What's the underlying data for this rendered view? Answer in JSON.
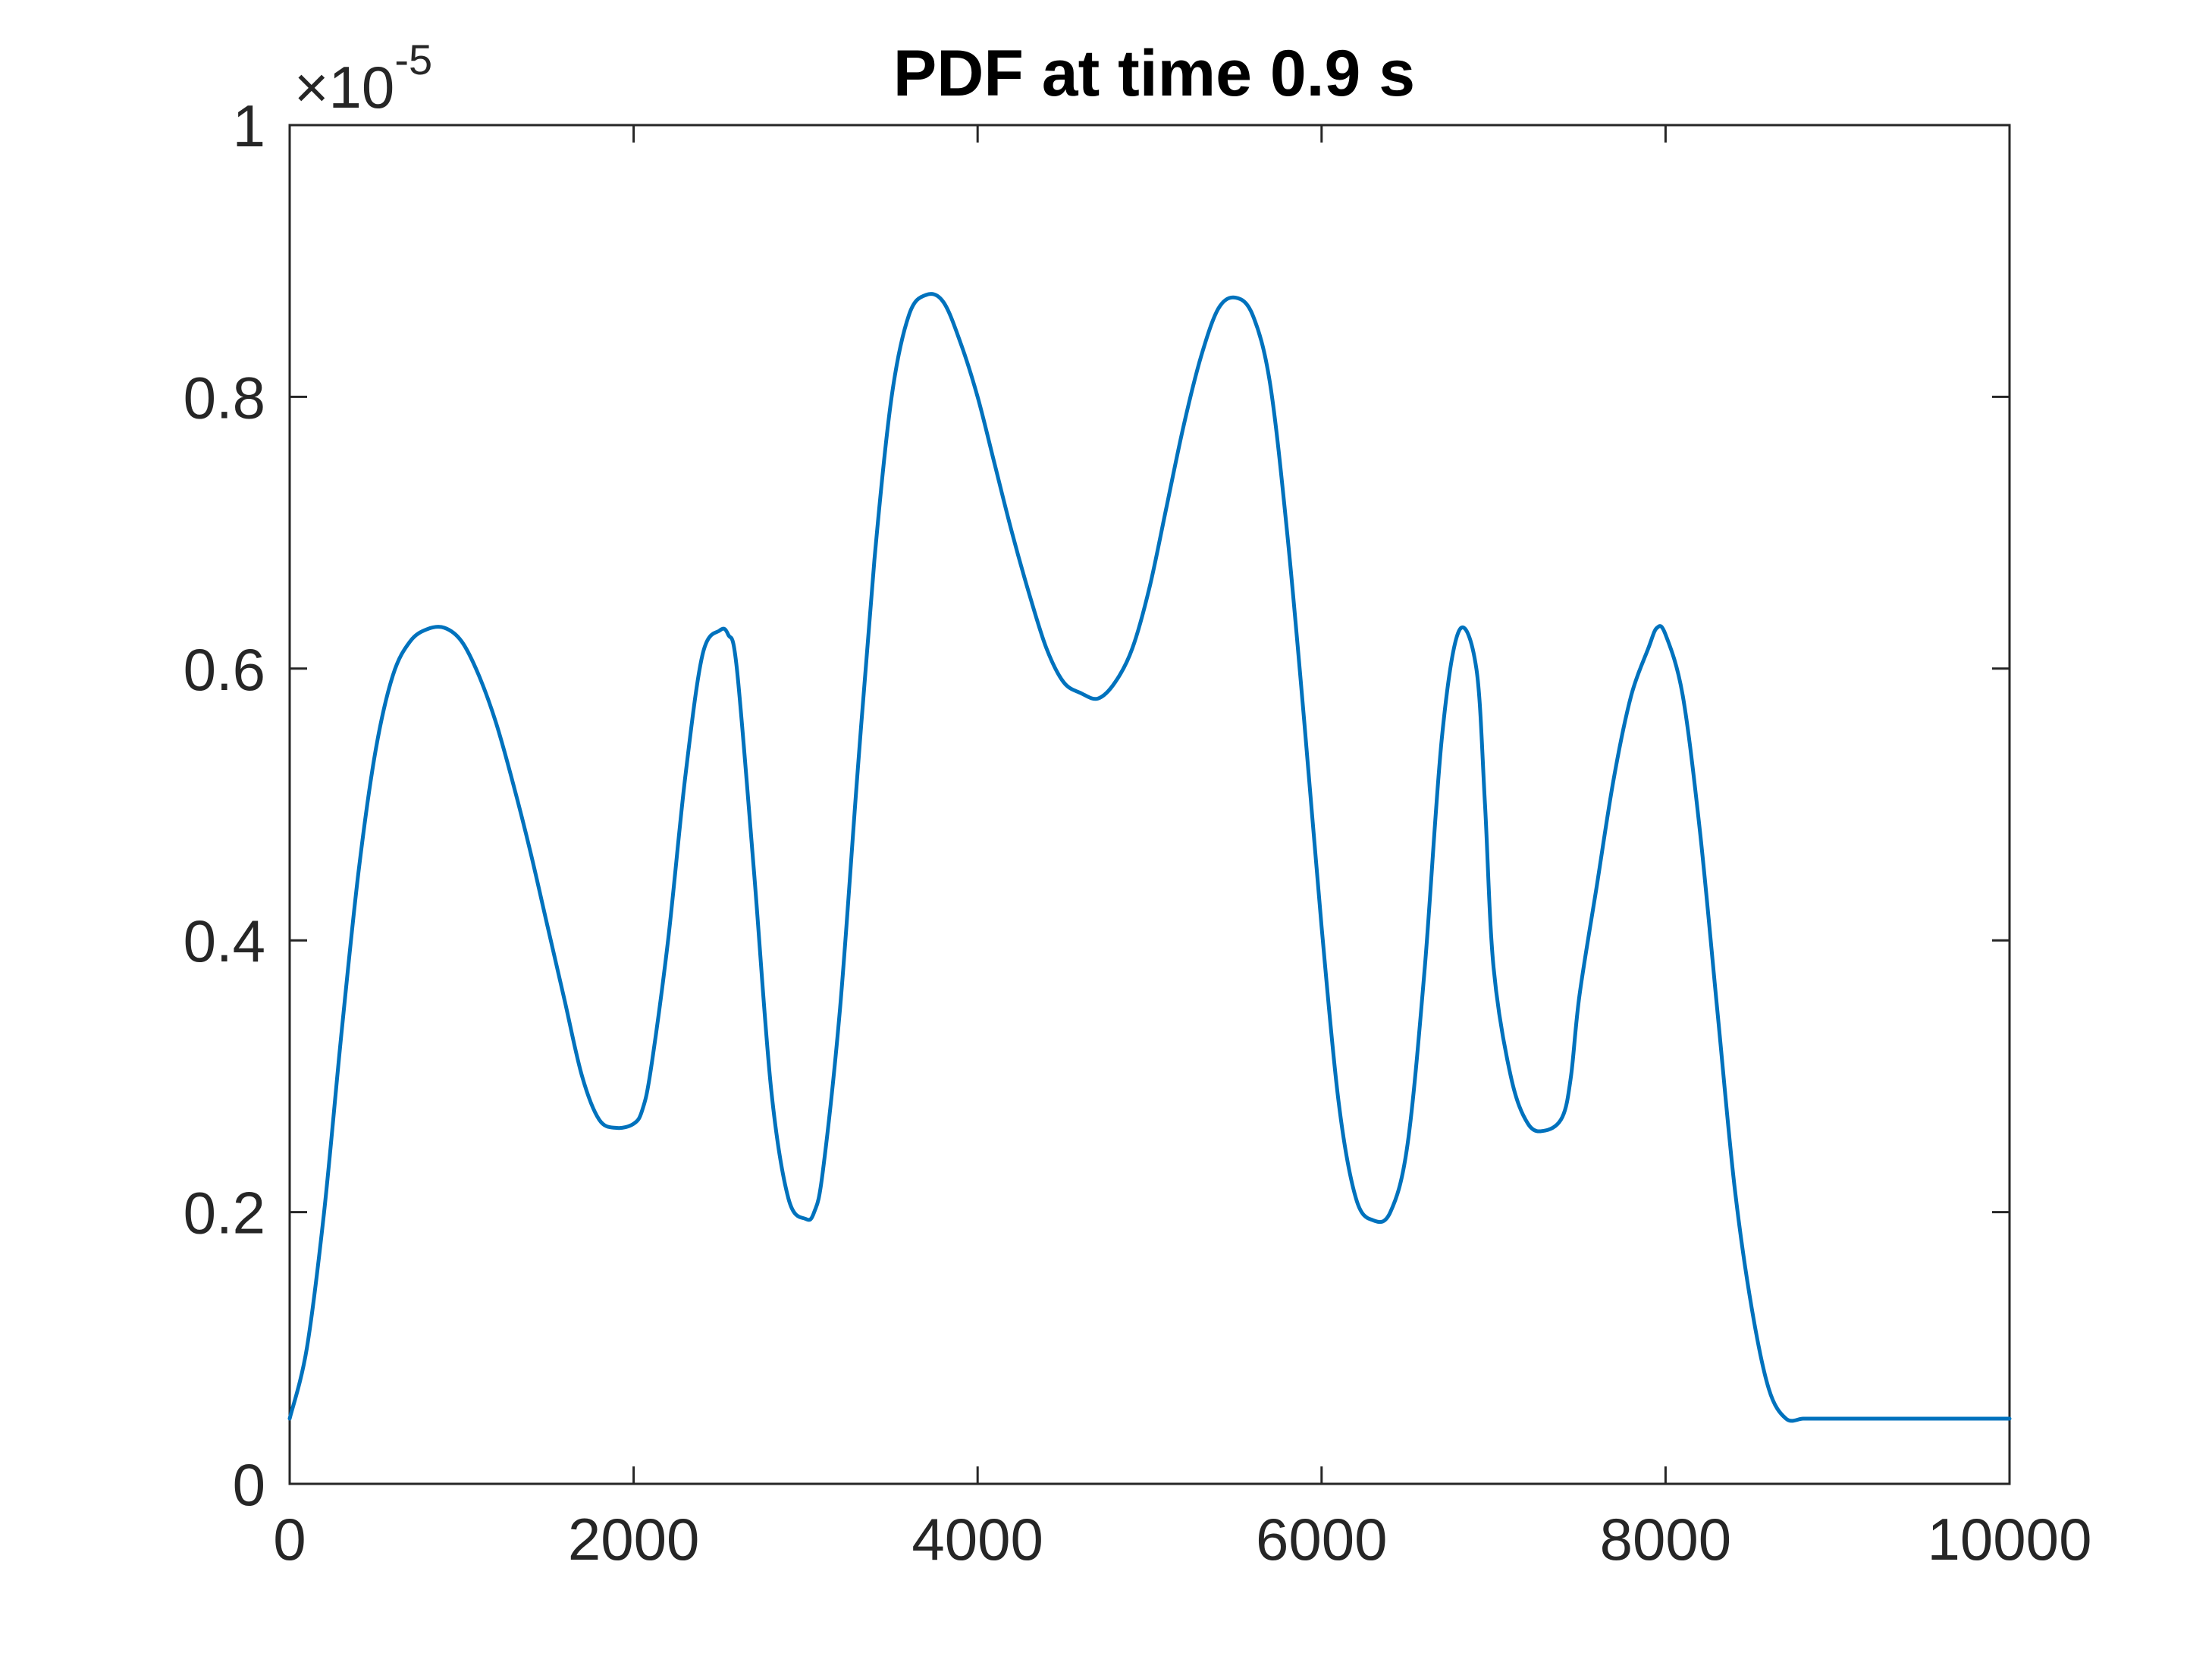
{
  "chart_data": {
    "type": "line",
    "title": "PDF at time 0.9 s",
    "xlabel": "",
    "ylabel": "",
    "xlim": [
      0,
      10000
    ],
    "ylim": [
      0,
      1
    ],
    "y_multiplier": {
      "base": "×10",
      "exponent": "-5"
    },
    "x_ticks": [
      0,
      2000,
      4000,
      6000,
      8000,
      10000
    ],
    "x_tick_labels": [
      "0",
      "2000",
      "4000",
      "6000",
      "8000",
      "10000"
    ],
    "y_ticks": [
      0,
      0.2,
      0.4,
      0.6,
      0.8,
      1
    ],
    "y_tick_labels": [
      "0",
      "0.2",
      "0.4",
      "0.6",
      "0.8",
      "1"
    ],
    "grid": false,
    "box": true,
    "colors": {
      "line": "#0072BD",
      "axes": "#262626"
    },
    "series": [
      {
        "x": [
          0,
          100,
          200,
          300,
          400,
          500,
          600,
          700,
          800,
          900,
          1000,
          1100,
          1200,
          1300,
          1400,
          1500,
          1600,
          1700,
          1800,
          1900,
          2000,
          2050,
          2100,
          2200,
          2300,
          2400,
          2500,
          2550,
          2600,
          2700,
          2800,
          2900,
          3000,
          3050,
          3100,
          3200,
          3300,
          3400,
          3500,
          3600,
          3700,
          3800,
          3900,
          4000,
          4100,
          4200,
          4300,
          4400,
          4500,
          4600,
          4700,
          4800,
          4900,
          5000,
          5100,
          5200,
          5300,
          5400,
          5500,
          5600,
          5700,
          5800,
          5900,
          6000,
          6100,
          6200,
          6300,
          6400,
          6500,
          6600,
          6700,
          6800,
          6900,
          6950,
          7000,
          7100,
          7200,
          7300,
          7400,
          7450,
          7500,
          7600,
          7700,
          7800,
          7900,
          7950,
          8000,
          8100,
          8200,
          8300,
          8400,
          8500,
          8600,
          8700,
          8800,
          8900,
          9000,
          9100,
          9200,
          9300,
          9400,
          9500,
          9600,
          9700,
          9800,
          9900,
          10000
        ],
        "y": [
          0.048,
          0.1,
          0.2,
          0.33,
          0.45,
          0.54,
          0.595,
          0.62,
          0.629,
          0.63,
          0.62,
          0.595,
          0.56,
          0.515,
          0.465,
          0.41,
          0.355,
          0.3,
          0.268,
          0.262,
          0.265,
          0.275,
          0.305,
          0.4,
          0.52,
          0.61,
          0.628,
          0.625,
          0.6,
          0.45,
          0.29,
          0.21,
          0.195,
          0.2,
          0.23,
          0.35,
          0.52,
          0.68,
          0.8,
          0.86,
          0.875,
          0.87,
          0.84,
          0.8,
          0.75,
          0.7,
          0.655,
          0.615,
          0.59,
          0.582,
          0.578,
          0.59,
          0.615,
          0.66,
          0.72,
          0.78,
          0.83,
          0.865,
          0.873,
          0.86,
          0.81,
          0.7,
          0.56,
          0.41,
          0.28,
          0.21,
          0.194,
          0.2,
          0.25,
          0.38,
          0.55,
          0.628,
          0.6,
          0.5,
          0.38,
          0.3,
          0.265,
          0.26,
          0.27,
          0.3,
          0.36,
          0.44,
          0.52,
          0.58,
          0.615,
          0.63,
          0.625,
          0.58,
          0.48,
          0.35,
          0.22,
          0.13,
          0.07,
          0.048,
          0.048,
          0.048,
          0.048,
          0.048,
          0.048,
          0.048,
          0.048,
          0.048,
          0.048,
          0.048,
          0.048,
          0.048,
          0.048
        ]
      }
    ]
  }
}
